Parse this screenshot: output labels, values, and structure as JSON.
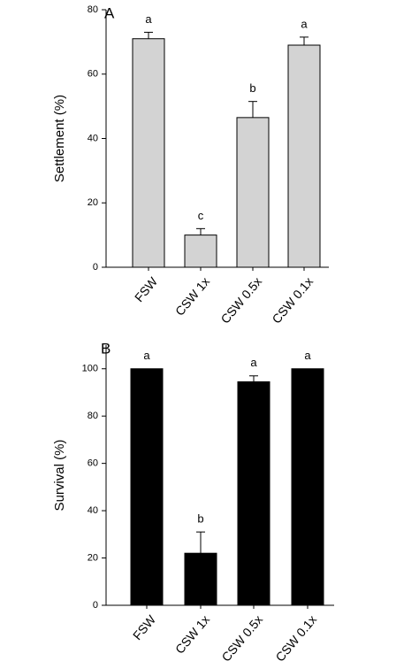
{
  "chart_data": [
    {
      "type": "bar",
      "panel": "A",
      "y_label": "Settlement (%)",
      "categories": [
        "FSW",
        "CSW 1x",
        "CSW 0.5x",
        "CSW 0.1x"
      ],
      "values": [
        71,
        10,
        46.5,
        69
      ],
      "errors": [
        2,
        2,
        5,
        2.5
      ],
      "letters": [
        "a",
        "c",
        "b",
        "a"
      ],
      "color": "#d3d3d3",
      "ylim": [
        0,
        80
      ],
      "yticks": [
        0,
        20,
        40,
        60,
        80
      ]
    },
    {
      "type": "bar",
      "panel": "B",
      "y_label": "Survival (%)",
      "categories": [
        "FSW",
        "CSW 1x",
        "CSW 0.5x",
        "CSW 0.1x"
      ],
      "values": [
        100,
        22,
        94.5,
        100
      ],
      "errors": [
        0,
        9,
        2.5,
        0
      ],
      "letters": [
        "a",
        "b",
        "a",
        "a"
      ],
      "color": "#000000",
      "ylim": [
        0,
        110
      ],
      "yticks": [
        0,
        20,
        40,
        60,
        80,
        100
      ]
    }
  ]
}
